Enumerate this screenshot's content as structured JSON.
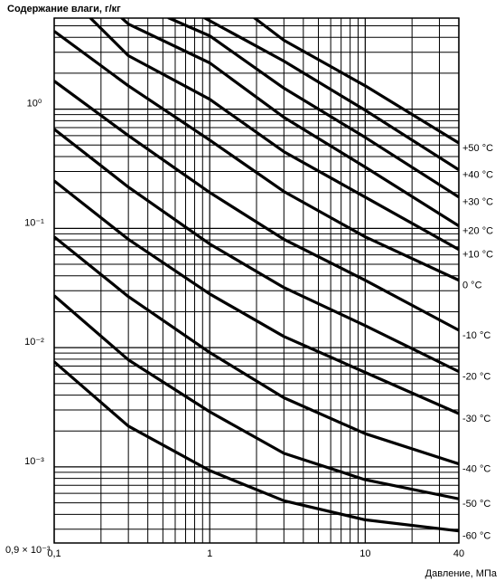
{
  "chart_data": {
    "type": "line",
    "y_label": "Содержание влаги, г/кг",
    "x_label": "Давление, МПа",
    "corner_label": "0,9 × 10⁻³",
    "log_x": true,
    "log_y": true,
    "grid": true,
    "color": "#000000",
    "xlim": [
      0.1,
      40
    ],
    "ylim": [
      0.00023,
      5.8
    ],
    "xticks": [
      {
        "value": 0.1,
        "label": "0,1"
      },
      1,
      10,
      40
    ],
    "yticks": [
      {
        "value": 1,
        "label": "10⁰"
      },
      {
        "value": 0.1,
        "label": "10⁻¹"
      },
      {
        "value": 0.01,
        "label": "10⁻²"
      },
      {
        "value": 0.001,
        "label": "10⁻³"
      }
    ],
    "xminor": [
      0.2,
      0.3,
      0.4,
      0.5,
      0.6,
      0.7,
      0.8,
      0.9,
      2,
      3,
      4,
      5,
      6,
      7,
      8,
      9,
      20,
      30
    ],
    "yminor": [
      0.0003,
      0.0004,
      0.0005,
      0.0006,
      0.0007,
      0.0008,
      0.0009,
      0.002,
      0.003,
      0.004,
      0.005,
      0.006,
      0.007,
      0.008,
      0.009,
      0.02,
      0.03,
      0.04,
      0.05,
      0.06,
      0.07,
      0.08,
      0.09,
      0.2,
      0.3,
      0.4,
      0.5,
      0.6,
      0.7,
      0.8,
      0.9,
      2,
      3,
      4,
      5
    ],
    "series": [
      {
        "name": "+50 °C",
        "x": [
          1.93,
          3,
          10,
          40
        ],
        "values": [
          5.85,
          3.78,
          1.57,
          0.52
        ]
      },
      {
        "name": "+40 °C",
        "x": [
          0.92,
          3,
          10,
          40
        ],
        "values": [
          5.85,
          2.53,
          0.98,
          0.31
        ]
      },
      {
        "name": "+30 °C",
        "x": [
          0.54,
          1,
          3,
          10,
          40
        ],
        "values": [
          5.85,
          4.12,
          1.5,
          0.58,
          0.183
        ]
      },
      {
        "name": "+20 °C",
        "x": [
          0.27,
          0.3,
          1,
          3,
          10,
          40
        ],
        "values": [
          5.85,
          5.17,
          2.44,
          0.855,
          0.327,
          0.105
        ]
      },
      {
        "name": "+10 °C",
        "x": [
          0.17,
          0.3,
          1,
          3,
          10,
          40
        ],
        "values": [
          5.85,
          2.81,
          1.21,
          0.44,
          0.183,
          0.0665
        ]
      },
      {
        "name": "0 °C",
        "x": [
          0.1,
          0.3,
          1,
          3,
          10,
          40
        ],
        "values": [
          4.5,
          1.57,
          0.55,
          0.204,
          0.085,
          0.0367
        ]
      },
      {
        "name": "-10 °C",
        "x": [
          0.1,
          0.3,
          1,
          3,
          10,
          40
        ],
        "values": [
          1.72,
          0.6,
          0.2,
          0.081,
          0.0367,
          0.014
        ]
      },
      {
        "name": "-20 °C",
        "x": [
          0.1,
          0.3,
          1,
          3,
          10,
          40
        ],
        "values": [
          0.68,
          0.222,
          0.074,
          0.0319,
          0.0153,
          0.0063
        ]
      },
      {
        "name": "-30 °C",
        "x": [
          0.1,
          0.3,
          1,
          3,
          10,
          40
        ],
        "values": [
          0.25,
          0.081,
          0.0282,
          0.0124,
          0.0062,
          0.0028
        ]
      },
      {
        "name": "-40 °C",
        "x": [
          0.1,
          0.3,
          1,
          3,
          10,
          40
        ],
        "values": [
          0.085,
          0.0268,
          0.0091,
          0.0038,
          0.0019,
          0.00106
        ]
      },
      {
        "name": "-50 °C",
        "x": [
          0.1,
          0.3,
          1,
          3,
          10,
          40
        ],
        "values": [
          0.0273,
          0.0079,
          0.0029,
          0.0013,
          0.00078,
          0.00054
        ]
      },
      {
        "name": "-60 °C",
        "x": [
          0.1,
          0.3,
          1,
          3,
          10,
          40
        ],
        "values": [
          0.0076,
          0.0022,
          0.00093,
          0.00052,
          0.00036,
          0.00029
        ]
      }
    ]
  }
}
